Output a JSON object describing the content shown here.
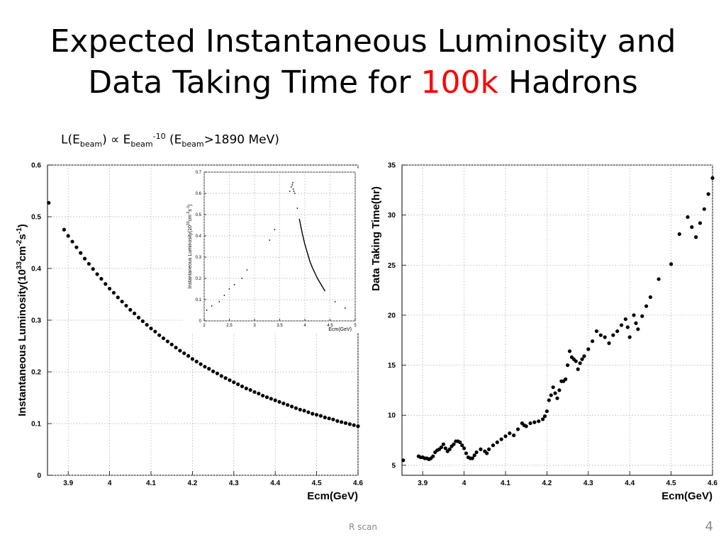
{
  "slide": {
    "title_line1": "Expected Instantaneous Luminosity and",
    "title_line2_pre": "Data Taking Time for ",
    "title_highlight": "100k",
    "title_line2_post": " Hadrons",
    "highlight_color": "#ff0000",
    "formula": {
      "a": "L(E",
      "sub1": "beam",
      "b": ") ∝ E",
      "sub2": "beam",
      "sup": "-10",
      "c": " (E",
      "sub3": "beam",
      "d": ">1890 MeV)"
    },
    "footer": "R scan",
    "page_number": "4"
  },
  "chart_data": [
    {
      "type": "scatter",
      "xlabel": "Ecm(GeV)",
      "ylabel_main": "Instantaneous Luminosity(10",
      "ylabel_sup1": "33",
      "ylabel_mid": "cm",
      "ylabel_sup2": "-2",
      "ylabel_s": "s",
      "ylabel_sup3": "-1",
      "ylabel_end": ")",
      "xlim": [
        3.85,
        4.6
      ],
      "ylim": [
        0,
        0.6
      ],
      "xticks": [
        "3.9",
        "4",
        "4.1",
        "4.2",
        "4.3",
        "4.4",
        "4.5",
        "4.6"
      ],
      "yticks": [
        "0",
        "0.1",
        "0.2",
        "0.3",
        "0.4",
        "0.5",
        "0.6"
      ],
      "grid": true,
      "marker_color": "#000000",
      "series": [
        {
          "x": [
            3.853,
            3.89,
            3.9,
            3.91,
            3.92,
            3.93,
            3.94,
            3.95,
            3.96,
            3.97,
            3.98,
            3.99,
            4.0,
            4.01,
            4.02,
            4.03,
            4.04,
            4.05,
            4.06,
            4.07,
            4.08,
            4.09,
            4.1,
            4.11,
            4.12,
            4.13,
            4.14,
            4.15,
            4.16,
            4.17,
            4.18,
            4.19,
            4.2,
            4.21,
            4.22,
            4.23,
            4.24,
            4.25,
            4.26,
            4.27,
            4.28,
            4.29,
            4.3,
            4.31,
            4.32,
            4.33,
            4.34,
            4.35,
            4.36,
            4.37,
            4.38,
            4.39,
            4.4,
            4.41,
            4.42,
            4.43,
            4.44,
            4.45,
            4.46,
            4.47,
            4.48,
            4.49,
            4.5,
            4.51,
            4.52,
            4.53,
            4.54,
            4.55,
            4.56,
            4.57,
            4.58,
            4.59,
            4.6
          ],
          "y": [
            0.527,
            0.475,
            0.463,
            0.452,
            0.441,
            0.43,
            0.419,
            0.409,
            0.399,
            0.389,
            0.38,
            0.37,
            0.361,
            0.353,
            0.344,
            0.336,
            0.328,
            0.32,
            0.313,
            0.305,
            0.298,
            0.291,
            0.284,
            0.278,
            0.271,
            0.265,
            0.259,
            0.253,
            0.247,
            0.241,
            0.236,
            0.231,
            0.225,
            0.22,
            0.215,
            0.21,
            0.206,
            0.201,
            0.197,
            0.192,
            0.188,
            0.184,
            0.18,
            0.176,
            0.172,
            0.168,
            0.165,
            0.161,
            0.158,
            0.154,
            0.151,
            0.148,
            0.145,
            0.142,
            0.139,
            0.136,
            0.133,
            0.13,
            0.127,
            0.125,
            0.122,
            0.119,
            0.117,
            0.115,
            0.112,
            0.11,
            0.108,
            0.105,
            0.103,
            0.101,
            0.099,
            0.097,
            0.095
          ]
        }
      ]
    },
    {
      "type": "scatter",
      "inset": true,
      "xlabel": "Ecm(GeV)",
      "ylabel_main": "Instantaneous Luminosity(10",
      "ylabel_sup1": "33",
      "ylabel_mid": "cm",
      "ylabel_sup2": "-2",
      "ylabel_s": "s",
      "ylabel_sup3": "-1",
      "ylabel_end": ")",
      "xlim": [
        2,
        5
      ],
      "ylim": [
        0,
        0.7
      ],
      "xticks": [
        "2",
        "2.5",
        "3",
        "3.5",
        "4",
        "4.5",
        "5"
      ],
      "yticks": [
        "0",
        "0.1",
        "0.2",
        "0.3",
        "0.4",
        "0.5",
        "0.6",
        "0.7"
      ],
      "grid": true,
      "series": [
        {
          "name": "",
          "x": [
            2.05,
            2.15,
            2.3,
            2.4,
            2.5,
            2.6,
            2.75,
            2.85,
            3.3,
            3.4,
            3.7,
            3.73,
            3.75,
            3.76,
            3.77,
            3.78,
            3.8,
            3.85,
            4.6,
            4.8
          ],
          "y": [
            0.05,
            0.07,
            0.09,
            0.12,
            0.15,
            0.17,
            0.2,
            0.24,
            0.38,
            0.43,
            0.61,
            0.63,
            0.64,
            0.65,
            0.62,
            0.61,
            0.6,
            0.53,
            0.09,
            0.06
          ]
        },
        {
          "name": "",
          "curve": true,
          "x": [
            3.89,
            3.95,
            4.0,
            4.05,
            4.1,
            4.15,
            4.2,
            4.25,
            4.3,
            4.35,
            4.4
          ],
          "y": [
            0.48,
            0.41,
            0.36,
            0.32,
            0.28,
            0.25,
            0.225,
            0.2,
            0.18,
            0.16,
            0.14
          ]
        }
      ]
    },
    {
      "type": "scatter",
      "xlabel": "Ecm(GeV)",
      "ylabel": "Data Taking Time(hr)",
      "xlim": [
        3.85,
        4.6
      ],
      "ylim": [
        4,
        35
      ],
      "xticks": [
        "3.9",
        "4",
        "4.1",
        "4.2",
        "4.3",
        "4.4",
        "4.5",
        "4.6"
      ],
      "yticks": [
        "5",
        "10",
        "15",
        "20",
        "25",
        "30",
        "35"
      ],
      "grid": true,
      "series": [
        {
          "x": [
            3.853,
            3.89,
            3.895,
            3.9,
            3.905,
            3.91,
            3.915,
            3.92,
            3.925,
            3.93,
            3.935,
            3.94,
            3.945,
            3.95,
            3.955,
            3.96,
            3.965,
            3.97,
            3.975,
            3.98,
            3.985,
            3.99,
            3.995,
            4.0,
            4.005,
            4.01,
            4.015,
            4.02,
            4.025,
            4.03,
            4.04,
            4.05,
            4.055,
            4.06,
            4.07,
            4.08,
            4.09,
            4.1,
            4.11,
            4.12,
            4.13,
            4.14,
            4.145,
            4.15,
            4.16,
            4.17,
            4.18,
            4.19,
            4.195,
            4.2,
            4.205,
            4.21,
            4.215,
            4.22,
            4.225,
            4.23,
            4.235,
            4.24,
            4.245,
            4.25,
            4.255,
            4.26,
            4.265,
            4.27,
            4.275,
            4.28,
            4.285,
            4.29,
            4.3,
            4.31,
            4.32,
            4.33,
            4.34,
            4.35,
            4.36,
            4.37,
            4.38,
            4.39,
            4.395,
            4.4,
            4.41,
            4.415,
            4.42,
            4.43,
            4.44,
            4.45,
            4.47,
            4.5,
            4.52,
            4.54,
            4.55,
            4.56,
            4.57,
            4.58,
            4.59,
            4.6
          ],
          "y": [
            5.5,
            5.9,
            5.8,
            5.8,
            5.7,
            5.7,
            5.6,
            5.7,
            5.9,
            6.3,
            6.5,
            6.6,
            6.8,
            7.1,
            6.7,
            6.4,
            6.6,
            6.9,
            7.1,
            7.4,
            7.4,
            7.3,
            7.0,
            6.7,
            6.2,
            5.8,
            5.7,
            5.7,
            6.0,
            6.3,
            6.6,
            6.4,
            6.2,
            6.6,
            7.0,
            7.3,
            7.6,
            7.9,
            8.2,
            8.0,
            8.6,
            9.2,
            9.0,
            8.9,
            9.2,
            9.3,
            9.4,
            9.6,
            9.9,
            10.4,
            11.5,
            12.0,
            12.8,
            12.2,
            11.7,
            12.5,
            13.4,
            13.4,
            13.6,
            15.0,
            16.4,
            15.8,
            15.6,
            15.4,
            14.6,
            15.2,
            15.6,
            15.9,
            16.6,
            17.4,
            18.4,
            18.0,
            17.8,
            17.2,
            18.0,
            18.4,
            19.0,
            19.6,
            18.8,
            17.8,
            20.0,
            19.2,
            18.6,
            19.9,
            20.9,
            21.8,
            23.6,
            25.1,
            28.1,
            29.8,
            28.8,
            27.8,
            29.2,
            30.6,
            32.1,
            33.7
          ]
        }
      ]
    }
  ]
}
